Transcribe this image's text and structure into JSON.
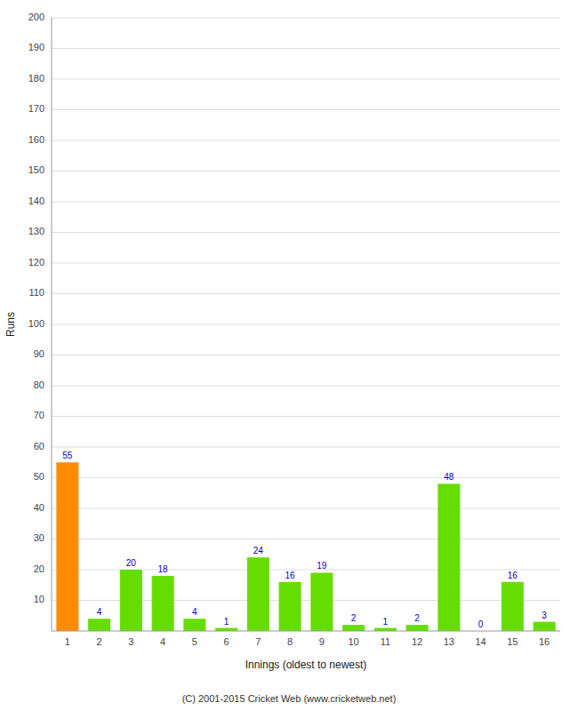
{
  "chart_data": {
    "type": "bar",
    "xlabel": "Innings (oldest to newest)",
    "ylabel": "Runs",
    "categories": [
      1,
      2,
      3,
      4,
      5,
      6,
      7,
      8,
      9,
      10,
      11,
      12,
      13,
      14,
      15,
      16
    ],
    "values": [
      55,
      4,
      20,
      18,
      4,
      1,
      24,
      16,
      19,
      2,
      1,
      2,
      48,
      0,
      16,
      3
    ],
    "colors": [
      "#ff8c00",
      "#66dd00",
      "#66dd00",
      "#66dd00",
      "#66dd00",
      "#66dd00",
      "#66dd00",
      "#66dd00",
      "#66dd00",
      "#66dd00",
      "#66dd00",
      "#66dd00",
      "#66dd00",
      "#66dd00",
      "#66dd00",
      "#66dd00"
    ],
    "ylim": [
      0,
      200
    ],
    "yticks": [
      10,
      20,
      30,
      40,
      50,
      60,
      70,
      80,
      90,
      100,
      110,
      120,
      130,
      140,
      150,
      160,
      170,
      180,
      190,
      200
    ],
    "grid": true,
    "data_labels": true,
    "annotations": [
      "(C) 2001-2015 Cricket Web (www.cricketweb.net)"
    ]
  }
}
